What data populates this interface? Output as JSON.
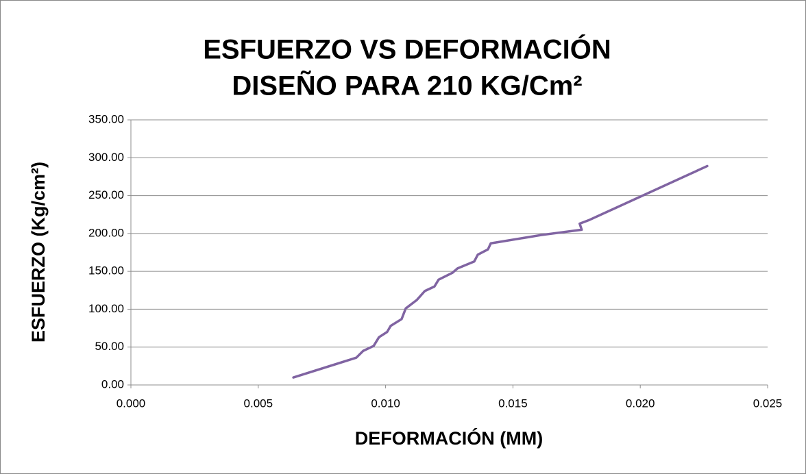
{
  "chart_data": {
    "type": "line",
    "title": [
      "ESFUERZO VS DEFORMACIÓN",
      "DISEÑO PARA 210 KG/Cm²"
    ],
    "x_label": "DEFORMACIÓN (MM)",
    "y_label": "ESFUERZO (Kg/cm²)",
    "xlim": [
      0,
      0.025
    ],
    "xticks": [
      {
        "value": 0,
        "label": "0.000"
      },
      {
        "value": 0.005,
        "label": "0.005"
      },
      {
        "value": 0.01,
        "label": "0.010"
      },
      {
        "value": 0.015,
        "label": "0.015"
      },
      {
        "value": 0.02,
        "label": "0.020"
      },
      {
        "value": 0.025,
        "label": "0.025"
      }
    ],
    "ylim": [
      0,
      350
    ],
    "yticks": [
      {
        "value": 0,
        "label": "0.00"
      },
      {
        "value": 50,
        "label": "50.00"
      },
      {
        "value": 100,
        "label": "100.00"
      },
      {
        "value": 150,
        "label": "150.00"
      },
      {
        "value": 200,
        "label": "200.00"
      },
      {
        "value": 250,
        "label": "250.00"
      },
      {
        "value": 300,
        "label": "300.00"
      },
      {
        "value": 350,
        "label": "350.00"
      }
    ],
    "grid": true,
    "series": [
      {
        "color": "#8064a2",
        "x": [
          0.00638,
          0.00885,
          0.00912,
          0.00953,
          0.00974,
          0.01006,
          0.0102,
          0.01063,
          0.01079,
          0.01122,
          0.01154,
          0.01192,
          0.01208,
          0.01262,
          0.01283,
          0.01348,
          0.01362,
          0.01402,
          0.01413,
          0.01612,
          0.0177,
          0.01762,
          0.01801,
          0.02263
        ],
        "values": [
          9.9,
          36,
          45,
          51.5,
          63,
          70,
          78,
          87,
          101,
          112,
          124,
          130,
          139,
          148,
          154,
          163,
          172,
          179,
          187,
          198,
          205,
          213,
          218,
          289
        ]
      }
    ]
  }
}
